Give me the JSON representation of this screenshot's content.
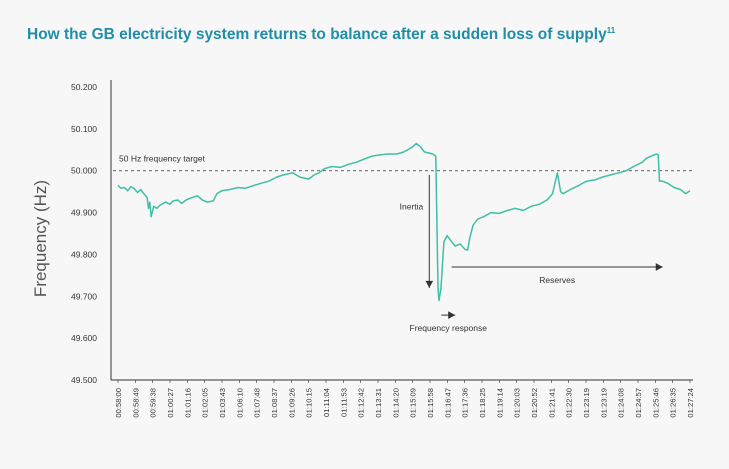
{
  "title": "How the GB electricity system returns to balance after a sudden loss of supply",
  "title_sup": "11",
  "colors": {
    "title": "#1f8ea6",
    "line": "#3fbfa6",
    "axis": "#333333",
    "arrow": "#333333"
  },
  "chart_data": {
    "type": "line",
    "ylabel": "Frequency (Hz)",
    "ylim": [
      49.5,
      50.2
    ],
    "yticks": [
      "50.200",
      "50.100",
      "50.000",
      "49.900",
      "49.800",
      "49.700",
      "49.600",
      "49.500"
    ],
    "x_ticks": [
      "00:58:00",
      "00:58:49",
      "00:59:38",
      "01:00:27",
      "01:01:16",
      "01:02:05",
      "01:02:54",
      "01:03:43",
      "01:04:32",
      "01:05:21",
      "01:06:10",
      "01:06:59",
      "01:07:48",
      "01:08:37",
      "01:09:26",
      "01:10:15",
      "01:11:04",
      "01:11:53",
      "01:12:42",
      "01:13:31",
      "01:14:20",
      "01:15:09",
      "01:15:58",
      "01:16:47",
      "01:17:36",
      "01:18:25",
      "01:19:14",
      "01:20:03",
      "01:20:52",
      "01:21:41",
      "01:22:30",
      "01:23:19",
      "01:24:08",
      "01:24:57",
      "01:25:46",
      "01:26:35",
      "01:27:24"
    ],
    "x_tick_labels_shown": [
      "00:58:00",
      "00:58:49",
      "00:59:38",
      "01:00:27",
      "01:01:16",
      "01:02:05",
      "01:03:43",
      "01:06:10",
      "01:07:48",
      "01:08:37",
      "01:09:26",
      "01:10:15",
      "01:11:04",
      "01:11:53",
      "01:12:42",
      "01:13:31",
      "01:14:20",
      "01:15:09",
      "01:15:58",
      "01:16:47",
      "01:17:36",
      "01:18:25",
      "01:19:14",
      "01:20:03",
      "01:20:52",
      "01:21:41",
      "01:22:30",
      "01:23:19",
      "01:23:19",
      "01:24:08",
      "01:24:57",
      "01:25:46",
      "01:26:35",
      "01:27:24"
    ],
    "series": [
      {
        "points": [
          [
            "00:58:00",
            49.965
          ],
          [
            "00:58:10",
            49.958
          ],
          [
            "00:58:20",
            49.96
          ],
          [
            "00:58:30",
            49.952
          ],
          [
            "00:58:40",
            49.962
          ],
          [
            "00:58:49",
            49.958
          ],
          [
            "00:59:00",
            49.948
          ],
          [
            "00:59:10",
            49.955
          ],
          [
            "00:59:20",
            49.945
          ],
          [
            "00:59:30",
            49.935
          ],
          [
            "00:59:34",
            49.91
          ],
          [
            "00:59:38",
            49.925
          ],
          [
            "00:59:42",
            49.89
          ],
          [
            "00:59:50",
            49.915
          ],
          [
            "01:00:00",
            49.91
          ],
          [
            "01:00:10",
            49.918
          ],
          [
            "01:00:27",
            49.925
          ],
          [
            "01:00:40",
            49.92
          ],
          [
            "01:00:50",
            49.928
          ],
          [
            "01:01:05",
            49.93
          ],
          [
            "01:01:16",
            49.922
          ],
          [
            "01:01:30",
            49.93
          ],
          [
            "01:01:45",
            49.935
          ],
          [
            "01:02:05",
            49.94
          ],
          [
            "01:02:20",
            49.93
          ],
          [
            "01:02:35",
            49.925
          ],
          [
            "01:02:54",
            49.928
          ],
          [
            "01:03:05",
            49.945
          ],
          [
            "01:03:20",
            49.952
          ],
          [
            "01:03:43",
            49.955
          ],
          [
            "01:04:10",
            49.96
          ],
          [
            "01:04:32",
            49.958
          ],
          [
            "01:05:00",
            49.965
          ],
          [
            "01:05:21",
            49.97
          ],
          [
            "01:05:45",
            49.975
          ],
          [
            "01:06:10",
            49.985
          ],
          [
            "01:06:30",
            49.99
          ],
          [
            "01:06:59",
            49.995
          ],
          [
            "01:07:20",
            49.985
          ],
          [
            "01:07:48",
            49.98
          ],
          [
            "01:08:05",
            49.99
          ],
          [
            "01:08:20",
            49.995
          ],
          [
            "01:08:37",
            50.005
          ],
          [
            "01:09:00",
            50.01
          ],
          [
            "01:09:26",
            50.008
          ],
          [
            "01:09:50",
            50.015
          ],
          [
            "01:10:15",
            50.02
          ],
          [
            "01:10:40",
            50.028
          ],
          [
            "01:11:04",
            50.035
          ],
          [
            "01:11:30",
            50.038
          ],
          [
            "01:11:53",
            50.04
          ],
          [
            "01:12:20",
            50.04
          ],
          [
            "01:12:42",
            50.045
          ],
          [
            "01:13:05",
            50.055
          ],
          [
            "01:13:20",
            50.065
          ],
          [
            "01:13:31",
            50.058
          ],
          [
            "01:13:45",
            50.045
          ],
          [
            "01:14:00",
            50.042
          ],
          [
            "01:14:10",
            50.04
          ],
          [
            "01:14:20",
            50.035
          ],
          [
            "01:14:24",
            49.85
          ],
          [
            "01:14:27",
            49.72
          ],
          [
            "01:14:30",
            49.69
          ],
          [
            "01:14:36",
            49.72
          ],
          [
            "01:14:45",
            49.83
          ],
          [
            "01:14:55",
            49.845
          ],
          [
            "01:15:09",
            49.83
          ],
          [
            "01:15:20",
            49.82
          ],
          [
            "01:15:35",
            49.825
          ],
          [
            "01:15:50",
            49.812
          ],
          [
            "01:15:58",
            49.81
          ],
          [
            "01:16:05",
            49.84
          ],
          [
            "01:16:15",
            49.87
          ],
          [
            "01:16:30",
            49.885
          ],
          [
            "01:16:47",
            49.89
          ],
          [
            "01:17:10",
            49.9
          ],
          [
            "01:17:36",
            49.898
          ],
          [
            "01:18:00",
            49.905
          ],
          [
            "01:18:25",
            49.91
          ],
          [
            "01:18:50",
            49.905
          ],
          [
            "01:19:14",
            49.915
          ],
          [
            "01:19:40",
            49.92
          ],
          [
            "01:20:03",
            49.93
          ],
          [
            "01:20:20",
            49.945
          ],
          [
            "01:20:35",
            49.995
          ],
          [
            "01:20:45",
            49.95
          ],
          [
            "01:20:52",
            49.945
          ],
          [
            "01:21:15",
            49.955
          ],
          [
            "01:21:41",
            49.965
          ],
          [
            "01:22:05",
            49.975
          ],
          [
            "01:22:30",
            49.978
          ],
          [
            "01:22:55",
            49.985
          ],
          [
            "01:23:19",
            49.99
          ],
          [
            "01:23:45",
            49.995
          ],
          [
            "01:24:08",
            50.0
          ],
          [
            "01:24:30",
            50.01
          ],
          [
            "01:24:57",
            50.02
          ],
          [
            "01:25:10",
            50.03
          ],
          [
            "01:25:25",
            50.035
          ],
          [
            "01:25:40",
            50.04
          ],
          [
            "01:25:46",
            50.038
          ],
          [
            "01:25:50",
            49.975
          ],
          [
            "01:26:00",
            49.975
          ],
          [
            "01:26:15",
            49.97
          ],
          [
            "01:26:35",
            49.96
          ],
          [
            "01:26:55",
            49.955
          ],
          [
            "01:27:10",
            49.945
          ],
          [
            "01:27:24",
            49.952
          ]
        ]
      }
    ],
    "reference_line": {
      "value": 50.0,
      "label": "50 Hz frequency target",
      "style": "dashed"
    },
    "annotations": [
      {
        "label": "Inertia",
        "arrow": "down",
        "from": {
          "x": "01:14:00",
          "y": 49.99
        },
        "to": {
          "x": "01:14:00",
          "y": 49.72
        }
      },
      {
        "label": "Frequency response",
        "arrow": "right",
        "from": {
          "x": "01:14:37",
          "y": 49.655
        },
        "to": {
          "x": "01:15:20",
          "y": 49.655
        }
      },
      {
        "label": "Reserves",
        "arrow": "right",
        "from": {
          "x": "01:15:09",
          "y": 49.77
        },
        "to": {
          "x": "01:26:00",
          "y": 49.77
        }
      }
    ],
    "grid": false
  }
}
